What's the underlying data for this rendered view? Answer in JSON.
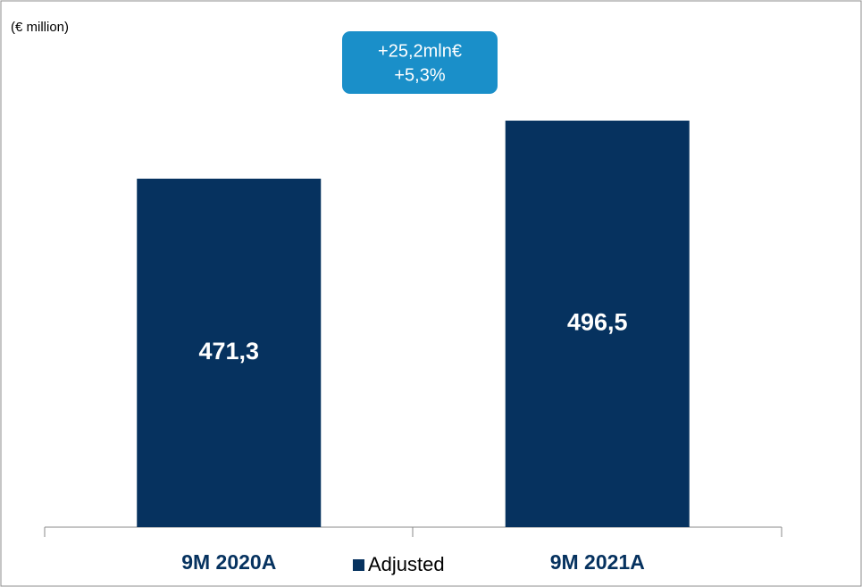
{
  "chart_data": {
    "type": "bar",
    "unit_label": "(€ million)",
    "annotation": [
      "+25,2mln€",
      "+5,3%"
    ],
    "categories": [
      "9M 2020A",
      "9M 2021A"
    ],
    "series": [
      {
        "name": "Adjusted",
        "color": "#06325f",
        "values": [
          471.3,
          496.5
        ],
        "value_labels": [
          "471,3",
          "496,5"
        ]
      }
    ],
    "ylim": [
      320,
      545
    ],
    "legend": "bottom"
  }
}
